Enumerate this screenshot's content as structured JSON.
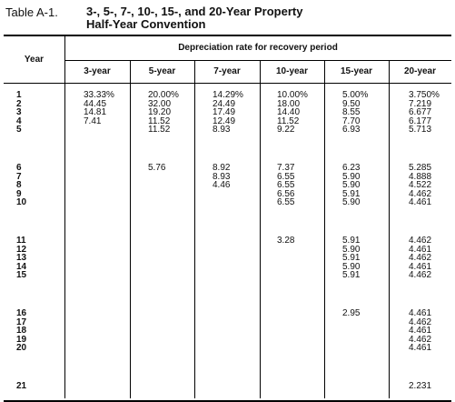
{
  "title": {
    "label": "Table A-1.",
    "line1": "3-, 5-, 7-, 10-, 15-, and 20-Year Property",
    "line2": "Half-Year Convention"
  },
  "table": {
    "year_header": "Year",
    "group_header": "Depreciation rate for recovery period",
    "columns": [
      "3-year",
      "5-year",
      "7-year",
      "10-year",
      "15-year",
      "20-year"
    ],
    "rows": [
      {
        "year": "1",
        "values": [
          "33.33%",
          "20.00%",
          "14.29%",
          "10.00%",
          "5.00%",
          "3.750%"
        ]
      },
      {
        "year": "2",
        "values": [
          "44.45",
          "32.00",
          "24.49",
          "18.00",
          "9.50",
          "7.219"
        ]
      },
      {
        "year": "3",
        "values": [
          "14.81",
          "19.20",
          "17.49",
          "14.40",
          "8.55",
          "6.677"
        ]
      },
      {
        "year": "4",
        "values": [
          "7.41",
          "11.52",
          "12.49",
          "11.52",
          "7.70",
          "6.177"
        ]
      },
      {
        "year": "5",
        "values": [
          "",
          "11.52",
          "8.93",
          "9.22",
          "6.93",
          "5.713"
        ]
      },
      {
        "year": "6",
        "values": [
          "",
          "5.76",
          "8.92",
          "7.37",
          "6.23",
          "5.285"
        ]
      },
      {
        "year": "7",
        "values": [
          "",
          "",
          "8.93",
          "6.55",
          "5.90",
          "4.888"
        ]
      },
      {
        "year": "8",
        "values": [
          "",
          "",
          "4.46",
          "6.55",
          "5.90",
          "4.522"
        ]
      },
      {
        "year": "9",
        "values": [
          "",
          "",
          "",
          "6.56",
          "5.91",
          "4.462"
        ]
      },
      {
        "year": "10",
        "values": [
          "",
          "",
          "",
          "6.55",
          "5.90",
          "4.461"
        ]
      },
      {
        "year": "11",
        "values": [
          "",
          "",
          "",
          "3.28",
          "5.91",
          "4.462"
        ]
      },
      {
        "year": "12",
        "values": [
          "",
          "",
          "",
          "",
          "5.90",
          "4.461"
        ]
      },
      {
        "year": "13",
        "values": [
          "",
          "",
          "",
          "",
          "5.91",
          "4.462"
        ]
      },
      {
        "year": "14",
        "values": [
          "",
          "",
          "",
          "",
          "5.90",
          "4.461"
        ]
      },
      {
        "year": "15",
        "values": [
          "",
          "",
          "",
          "",
          "5.91",
          "4.462"
        ]
      },
      {
        "year": "16",
        "values": [
          "",
          "",
          "",
          "",
          "2.95",
          "4.461"
        ]
      },
      {
        "year": "17",
        "values": [
          "",
          "",
          "",
          "",
          "",
          "4.462"
        ]
      },
      {
        "year": "18",
        "values": [
          "",
          "",
          "",
          "",
          "",
          "4.461"
        ]
      },
      {
        "year": "19",
        "values": [
          "",
          "",
          "",
          "",
          "",
          "4.462"
        ]
      },
      {
        "year": "20",
        "values": [
          "",
          "",
          "",
          "",
          "",
          "4.461"
        ]
      },
      {
        "year": "21",
        "values": [
          "",
          "",
          "",
          "",
          "",
          "2.231"
        ]
      }
    ]
  }
}
